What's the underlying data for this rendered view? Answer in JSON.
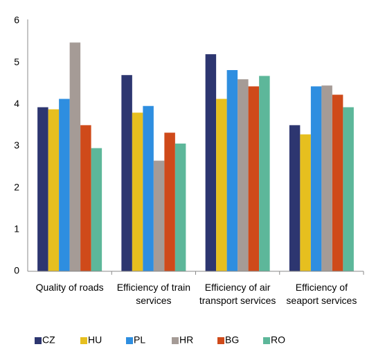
{
  "chart_data": {
    "type": "bar",
    "categories": [
      "Quality of roads",
      "Efficiency of train services",
      "Efficiency of air transport services",
      "Efficiency of seaport services"
    ],
    "series": [
      {
        "name": "CZ",
        "color": "#2d3670",
        "values": [
          3.93,
          4.7,
          5.2,
          3.5
        ]
      },
      {
        "name": "HU",
        "color": "#e6bf1f",
        "values": [
          3.88,
          3.8,
          4.13,
          3.28
        ]
      },
      {
        "name": "PL",
        "color": "#2e8ee0",
        "values": [
          4.13,
          3.96,
          4.82,
          4.43
        ]
      },
      {
        "name": "HR",
        "color": "#a59b96",
        "values": [
          5.48,
          2.65,
          4.6,
          4.45
        ]
      },
      {
        "name": "BG",
        "color": "#cf4a1a",
        "values": [
          3.5,
          3.32,
          4.43,
          4.23
        ]
      },
      {
        "name": "RO",
        "color": "#5db79a",
        "values": [
          2.95,
          3.06,
          4.68,
          3.93
        ]
      }
    ],
    "ylim": [
      0,
      6
    ],
    "yticks": [
      0,
      1,
      2,
      3,
      4,
      5,
      6
    ],
    "grid": false,
    "legend": "bottom"
  }
}
